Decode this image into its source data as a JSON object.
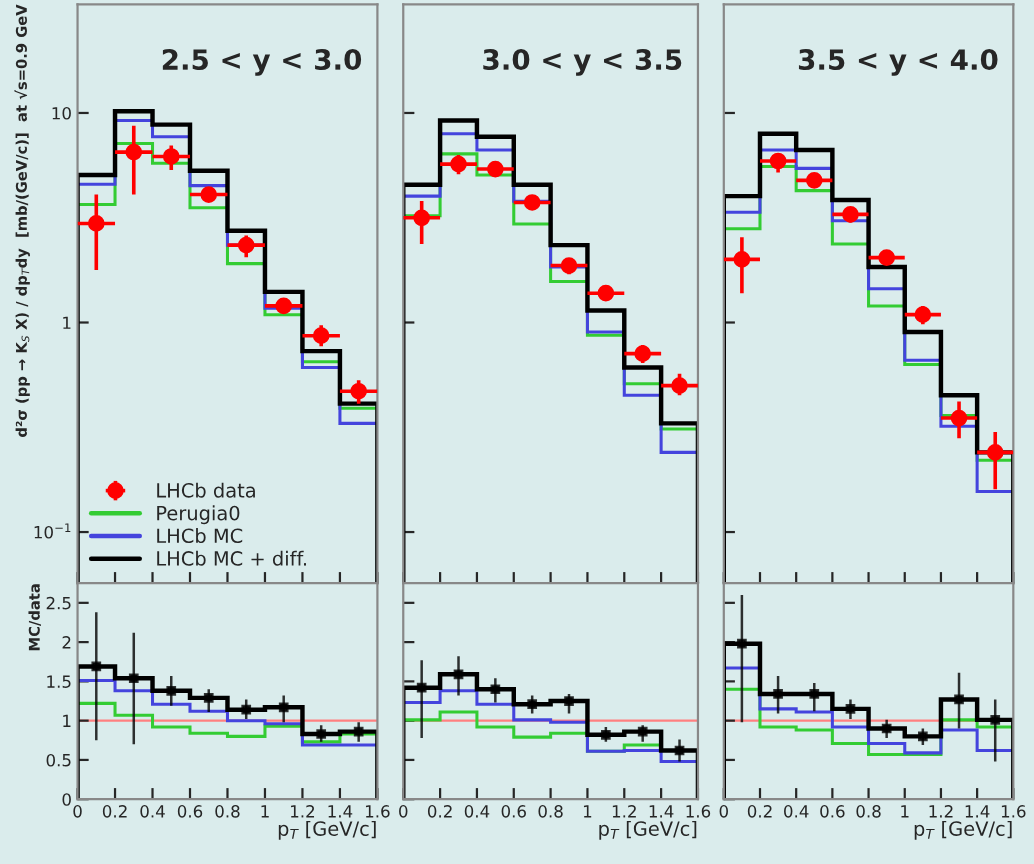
{
  "chart_data": [
    {
      "type": "histogram",
      "bins": [
        0,
        0.2,
        0.4,
        0.6,
        0.8,
        1,
        1.2,
        1.4,
        1.6
      ],
      "xlim": [
        0,
        1.6
      ],
      "xticks": [
        0,
        0.2,
        0.4,
        0.6,
        0.8,
        1,
        1.2,
        1.4,
        1.6
      ],
      "ylim": [
        0.057,
        33
      ],
      "yticks": [
        {
          "value": 0.1,
          "label": "10$^{−1}$"
        },
        1,
        10
      ],
      "log": true,
      "tick_labels": "y",
      "ylabel": "d²σ (pp → K$_{S}$ X) / dp$_{T}$dy  [mb/(GeV/c)]  at √s=0.9 GeV",
      "annotations": [
        "2.5 < y < 3.0"
      ],
      "legend": "bottom left",
      "marker": "circle",
      "series": [
        {
          "name": "LHCb data",
          "type": "scatter",
          "color": "#ff0000",
          "x": [
            0.1,
            0.3,
            0.5,
            0.7,
            0.9,
            1.1,
            1.3,
            1.5
          ],
          "values": [
            2.97,
            6.5,
            6.2,
            4.08,
            2.34,
            1.2,
            0.865,
            0.47
          ],
          "errors": [
            [
              1.78,
              4.08
            ],
            [
              4.08,
              8.7
            ],
            [
              5.35,
              7.0
            ],
            [
              3.8,
              4.4
            ],
            [
              2.05,
              2.6
            ],
            [
              1.1,
              1.28
            ],
            [
              0.77,
              0.97
            ],
            [
              0.41,
              0.53
            ]
          ],
          "xerrors": [
            0.1,
            0.1,
            0.1,
            0.1,
            0.1,
            0.1,
            0.1,
            0.1
          ]
        },
        {
          "name": "Perugia0",
          "color": "#33cc33",
          "values": [
            3.66,
            7.15,
            5.76,
            3.53,
            1.91,
            1.09,
            0.65,
            0.39
          ]
        },
        {
          "name": "LHCb MC",
          "color": "#4444dd",
          "values": [
            4.57,
            9.2,
            7.7,
            4.5,
            2.34,
            1.17,
            0.61,
            0.33
          ]
        },
        {
          "name": "LHCb MC + diff.",
          "color": "#000000",
          "values": [
            5.06,
            10.2,
            8.8,
            5.3,
            2.74,
            1.4,
            0.73,
            0.41
          ]
        }
      ]
    },
    {
      "type": "histogram",
      "bins": [
        0,
        0.2,
        0.4,
        0.6,
        0.8,
        1,
        1.2,
        1.4,
        1.6
      ],
      "xlim": [
        0,
        1.6
      ],
      "xticks": [
        0,
        0.2,
        0.4,
        0.6,
        0.8,
        1,
        1.2,
        1.4,
        1.6
      ],
      "ylim": [
        0.057,
        33
      ],
      "yticks": [
        0.1,
        1,
        10
      ],
      "log": true,
      "tick_labels": false,
      "annotations": [
        "3.0 < y < 3.5"
      ],
      "marker": "circle",
      "series": [
        {
          "type": "scatter",
          "color": "#ff0000",
          "x": [
            0.1,
            0.3,
            0.5,
            0.7,
            0.9,
            1.1,
            1.3,
            1.5
          ],
          "values": [
            3.16,
            5.7,
            5.4,
            3.74,
            1.87,
            1.38,
            0.71,
            0.5
          ],
          "errors": [
            [
              2.37,
              3.8
            ],
            [
              5.1,
              6.3
            ],
            [
              5.1,
              5.7
            ],
            [
              3.5,
              4.0
            ],
            [
              1.7,
              2.0
            ],
            [
              1.3,
              1.47
            ],
            [
              0.64,
              0.78
            ],
            [
              0.45,
              0.57
            ]
          ],
          "xerrors": [
            0.1,
            0.1,
            0.1,
            0.1,
            0.1,
            0.1,
            0.1,
            0.1
          ]
        },
        {
          "color": "#33cc33",
          "values": [
            3.23,
            6.38,
            5.06,
            2.95,
            1.57,
            0.87,
            0.51,
            0.31
          ]
        },
        {
          "color": "#4444dd",
          "values": [
            4.01,
            7.95,
            6.65,
            3.79,
            1.84,
            0.9,
            0.45,
            0.24
          ]
        },
        {
          "color": "#000000",
          "values": [
            4.54,
            9.2,
            7.7,
            4.54,
            2.34,
            1.14,
            0.61,
            0.33
          ]
        }
      ]
    },
    {
      "type": "histogram",
      "bins": [
        0,
        0.2,
        0.4,
        0.6,
        0.8,
        1,
        1.2,
        1.4,
        1.6
      ],
      "xlim": [
        0,
        1.6
      ],
      "xticks": [
        0,
        0.2,
        0.4,
        0.6,
        0.8,
        1,
        1.2,
        1.4,
        1.6
      ],
      "ylim": [
        0.057,
        33
      ],
      "yticks": [
        0.1,
        1,
        10
      ],
      "log": true,
      "tick_labels": false,
      "annotations": [
        "3.5 < y < 4.0"
      ],
      "marker": "circle",
      "series": [
        {
          "type": "scatter",
          "color": "#ff0000",
          "x": [
            0.1,
            0.3,
            0.5,
            0.7,
            0.9,
            1.1,
            1.3,
            1.5
          ],
          "values": [
            2.0,
            5.9,
            4.77,
            3.28,
            2.04,
            1.09,
            0.35,
            0.24
          ],
          "errors": [
            [
              1.38,
              2.55
            ],
            [
              5.2,
              6.4
            ],
            [
              4.4,
              5.1
            ],
            [
              3.0,
              3.5
            ],
            [
              1.9,
              2.2
            ],
            [
              0.98,
              1.2
            ],
            [
              0.28,
              0.42
            ],
            [
              0.16,
              0.3
            ]
          ],
          "xerrors": [
            0.1,
            0.1,
            0.1,
            0.1,
            0.1,
            0.1,
            0.1,
            0.1
          ]
        },
        {
          "color": "#33cc33",
          "values": [
            2.8,
            5.55,
            4.26,
            2.37,
            1.2,
            0.63,
            0.36,
            0.22
          ]
        },
        {
          "color": "#4444dd",
          "values": [
            3.36,
            6.65,
            5.44,
            3.06,
            1.45,
            0.66,
            0.32,
            0.156
          ]
        },
        {
          "color": "#000000",
          "values": [
            4.01,
            7.95,
            6.65,
            3.84,
            1.84,
            0.9,
            0.45,
            0.24
          ]
        }
      ]
    },
    {
      "type": "histogram",
      "bins": [
        0,
        0.2,
        0.4,
        0.6,
        0.8,
        1,
        1.2,
        1.4,
        1.6
      ],
      "xlim": [
        0,
        1.6
      ],
      "xticks": [
        0,
        0.2,
        0.4,
        0.6,
        0.8,
        1,
        1.2,
        1.4,
        1.6
      ],
      "ylim": [
        0,
        2.75
      ],
      "yticks": [
        0,
        0.5,
        1,
        1.5,
        2,
        2.5
      ],
      "xlabel": "p$_{T}$ [GeV/c]",
      "ylabel": "MC/data",
      "ref_lines": [
        {
          "axis": "y",
          "value": 1,
          "color": "#ff8080"
        }
      ],
      "series": [
        {
          "color": "#33cc33",
          "values": [
            1.22,
            1.07,
            0.92,
            0.84,
            0.8,
            0.93,
            0.73,
            0.83
          ]
        },
        {
          "color": "#4444dd",
          "values": [
            1.51,
            1.38,
            1.21,
            1.12,
            1.0,
            0.96,
            0.69,
            0.69
          ]
        },
        {
          "color": "#000000",
          "values": [
            1.69,
            1.54,
            1.38,
            1.29,
            1.14,
            1.17,
            0.83,
            0.86
          ]
        },
        {
          "type": "scatter",
          "marker": "square",
          "color": "#000000",
          "x": [
            0.1,
            0.3,
            0.5,
            0.7,
            0.9,
            1.1,
            1.3,
            1.5
          ],
          "values": [
            1.69,
            1.54,
            1.38,
            1.29,
            1.14,
            1.17,
            0.83,
            0.86
          ],
          "errors": [
            [
              0.75,
              2.38
            ],
            [
              0.7,
              2.12
            ],
            [
              1.19,
              1.57
            ],
            [
              1.11,
              1.4
            ],
            [
              1.02,
              1.27
            ],
            [
              0.98,
              1.32
            ],
            [
              0.73,
              0.94
            ],
            [
              0.73,
              0.98
            ]
          ]
        }
      ]
    },
    {
      "type": "histogram",
      "bins": [
        0,
        0.2,
        0.4,
        0.6,
        0.8,
        1,
        1.2,
        1.4,
        1.6
      ],
      "xlim": [
        0,
        1.6
      ],
      "xticks": [
        0,
        0.2,
        0.4,
        0.6,
        0.8,
        1,
        1.2,
        1.4,
        1.6
      ],
      "ylim": [
        0,
        2.75
      ],
      "yticks": [
        0,
        0.5,
        1,
        1.5,
        2,
        2.5
      ],
      "xlabel": "p$_{T}$ [GeV/c]",
      "tick_labels": "x",
      "ref_lines": [
        {
          "axis": "y",
          "value": 1,
          "color": "#ff8080"
        }
      ],
      "series": [
        {
          "color": "#33cc33",
          "values": [
            1.01,
            1.11,
            0.92,
            0.79,
            0.84,
            0.61,
            0.69,
            0.62
          ]
        },
        {
          "color": "#4444dd",
          "values": [
            1.23,
            1.38,
            1.21,
            1.01,
            0.98,
            0.61,
            0.62,
            0.48
          ]
        },
        {
          "color": "#000000",
          "values": [
            1.42,
            1.59,
            1.4,
            1.21,
            1.25,
            0.82,
            0.86,
            0.62
          ]
        },
        {
          "type": "scatter",
          "marker": "square",
          "color": "#000000",
          "x": [
            0.1,
            0.3,
            0.5,
            0.7,
            0.9,
            1.1,
            1.3,
            1.5
          ],
          "values": [
            1.42,
            1.59,
            1.4,
            1.21,
            1.25,
            0.82,
            0.86,
            0.62
          ],
          "errors": [
            [
              0.78,
              1.77
            ],
            [
              1.32,
              1.82
            ],
            [
              1.23,
              1.54
            ],
            [
              1.09,
              1.32
            ],
            [
              1.09,
              1.34
            ],
            [
              0.73,
              0.92
            ],
            [
              0.73,
              0.94
            ],
            [
              0.48,
              0.76
            ]
          ]
        }
      ]
    },
    {
      "type": "histogram",
      "bins": [
        0,
        0.2,
        0.4,
        0.6,
        0.8,
        1,
        1.2,
        1.4,
        1.6
      ],
      "xlim": [
        0,
        1.6
      ],
      "xticks": [
        0,
        0.2,
        0.4,
        0.6,
        0.8,
        1,
        1.2,
        1.4,
        1.6
      ],
      "ylim": [
        0,
        2.75
      ],
      "yticks": [
        0,
        0.5,
        1,
        1.5,
        2,
        2.5
      ],
      "xlabel": "p$_{T}$ [GeV/c]",
      "tick_labels": "x",
      "ref_lines": [
        {
          "axis": "y",
          "value": 1,
          "color": "#ff8080"
        }
      ],
      "series": [
        {
          "color": "#33cc33",
          "values": [
            1.4,
            0.92,
            0.88,
            0.71,
            0.57,
            0.57,
            1.01,
            0.92
          ]
        },
        {
          "color": "#4444dd",
          "values": [
            1.67,
            1.15,
            1.11,
            0.92,
            0.71,
            0.59,
            0.88,
            0.62
          ]
        },
        {
          "color": "#000000",
          "values": [
            1.98,
            1.34,
            1.34,
            1.15,
            0.9,
            0.8,
            1.27,
            1.01
          ]
        },
        {
          "type": "scatter",
          "marker": "square",
          "color": "#000000",
          "x": [
            0.1,
            0.3,
            0.5,
            0.7,
            0.9,
            1.1,
            1.3,
            1.5
          ],
          "values": [
            1.98,
            1.34,
            1.34,
            1.15,
            0.9,
            0.8,
            1.27,
            1.01
          ],
          "errors": [
            [
              0.98,
              2.6
            ],
            [
              1.09,
              1.57
            ],
            [
              1.12,
              1.48
            ],
            [
              1.02,
              1.27
            ],
            [
              0.78,
              1.01
            ],
            [
              0.69,
              0.9
            ],
            [
              0.9,
              1.61
            ],
            [
              0.48,
              1.27
            ]
          ]
        }
      ]
    }
  ]
}
